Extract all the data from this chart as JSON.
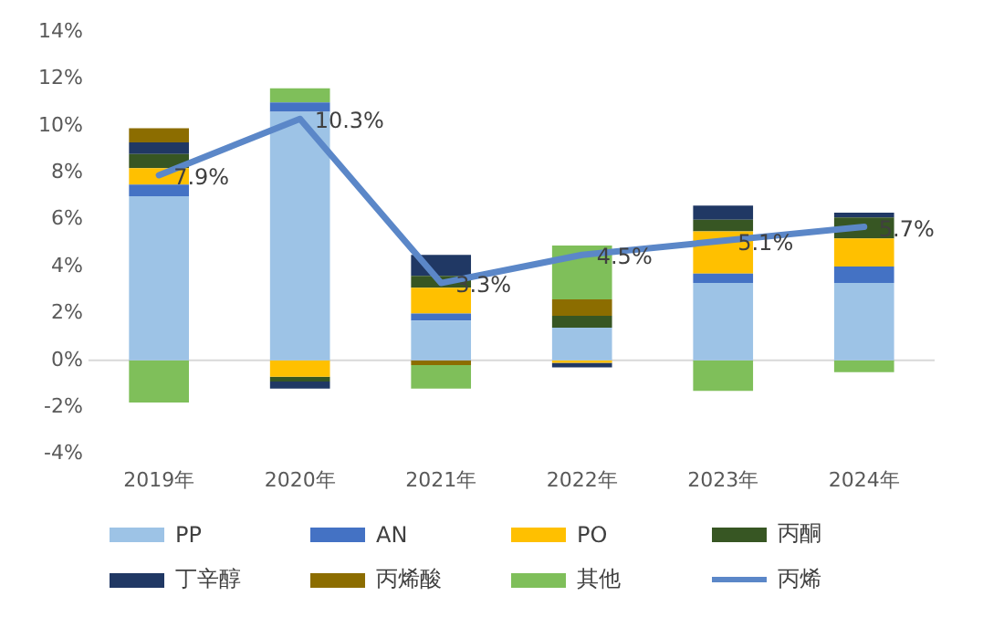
{
  "chart_data": {
    "type": "bar",
    "stacked": true,
    "categories": [
      "2019年",
      "2020年",
      "2021年",
      "2022年",
      "2023年",
      "2024年"
    ],
    "ylim": [
      -4,
      14
    ],
    "yticks": [
      {
        "value": -4,
        "label": "-4%"
      },
      {
        "value": -2,
        "label": "-2%"
      },
      {
        "value": 0,
        "label": "0%"
      },
      {
        "value": 2,
        "label": "2%"
      },
      {
        "value": 4,
        "label": "4%"
      },
      {
        "value": 6,
        "label": "6%"
      },
      {
        "value": 8,
        "label": "8%"
      },
      {
        "value": 10,
        "label": "10%"
      },
      {
        "value": 12,
        "label": "12%"
      },
      {
        "value": 14,
        "label": "14%"
      }
    ],
    "grid": false,
    "ref_lines": [
      {
        "axis": "y",
        "value": 0,
        "color": "#d9d9d9"
      }
    ],
    "legend": "bottom",
    "marker": "none",
    "line_style": "solid",
    "series": [
      {
        "name": "PP",
        "color": "#9dc3e6",
        "values": [
          7.0,
          10.6,
          1.7,
          1.4,
          3.3,
          3.3
        ]
      },
      {
        "name": "AN",
        "color": "#4472c4",
        "values": [
          0.5,
          0.4,
          0.3,
          null,
          0.4,
          0.7
        ]
      },
      {
        "name": "PO",
        "color": "#ffc000",
        "values": [
          0.7,
          -0.7,
          1.1,
          -0.1,
          1.8,
          1.2
        ]
      },
      {
        "name": "丙酮",
        "color": "#375623",
        "values": [
          0.6,
          -0.2,
          0.5,
          0.5,
          0.5,
          0.9
        ]
      },
      {
        "name": "丁辛醇",
        "color": "#203864",
        "values": [
          0.5,
          -0.3,
          0.9,
          -0.2,
          0.6,
          0.2
        ]
      },
      {
        "name": "丙烯酸",
        "color": "#8c6d00",
        "values": [
          0.6,
          null,
          -0.2,
          0.7,
          null,
          null
        ]
      },
      {
        "name": "其他",
        "color": "#7fbf5a",
        "values": [
          -1.8,
          0.6,
          -1.0,
          2.3,
          -1.3,
          -0.5
        ]
      },
      {
        "name": "丙烯",
        "type": "line",
        "color": "#5b87c8",
        "values": [
          7.9,
          10.3,
          3.3,
          4.5,
          5.1,
          5.7
        ],
        "value_labels": [
          "7.9%",
          "10.3%",
          "3.3%",
          "4.5%",
          "5.1%",
          "5.7%"
        ]
      }
    ]
  }
}
